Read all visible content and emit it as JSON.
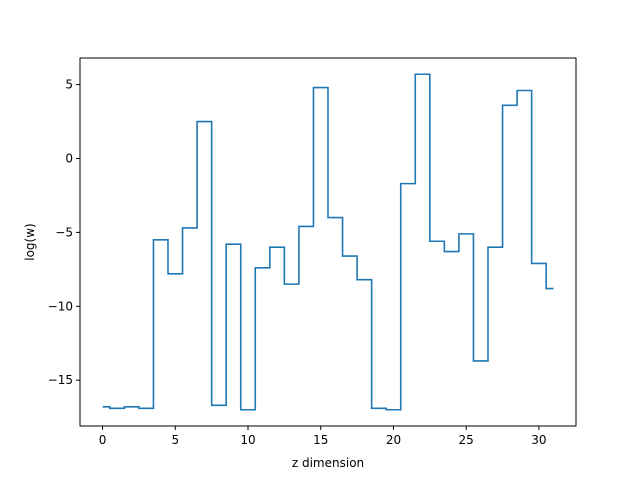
{
  "chart_data": {
    "type": "line",
    "drawstyle": "steps-mid",
    "title": "",
    "xlabel": "z dimension",
    "ylabel": "log(w)",
    "x": [
      0,
      1,
      2,
      3,
      4,
      5,
      6,
      7,
      8,
      9,
      10,
      11,
      12,
      13,
      14,
      15,
      16,
      17,
      18,
      19,
      20,
      21,
      22,
      23,
      24,
      25,
      26,
      27,
      28,
      29,
      30,
      31
    ],
    "series": [
      {
        "values": [
          -16.8,
          -16.9,
          -16.8,
          -16.9,
          -5.5,
          -7.8,
          -4.7,
          2.5,
          -16.7,
          -5.8,
          -17.0,
          -7.4,
          -6.0,
          -8.5,
          -4.6,
          4.8,
          -4.0,
          -6.6,
          -8.2,
          -16.9,
          -17.0,
          -1.7,
          5.7,
          -5.6,
          -6.3,
          -5.1,
          -13.7,
          -6.0,
          3.6,
          4.6,
          -7.1,
          -8.8
        ],
        "color": "#1f77b4"
      }
    ],
    "xlim": [
      -1.55,
      32.55
    ],
    "ylim": [
      -18.1,
      6.8
    ],
    "xticks": [
      0,
      5,
      10,
      15,
      20,
      25,
      30
    ],
    "xtick_labels": [
      "0",
      "5",
      "10",
      "15",
      "20",
      "25",
      "30"
    ],
    "yticks": [
      5,
      0,
      -5,
      -10,
      -15
    ],
    "ytick_labels": [
      "5",
      "0",
      "−5",
      "−10",
      "−15"
    ],
    "grid": false,
    "legend": false
  }
}
